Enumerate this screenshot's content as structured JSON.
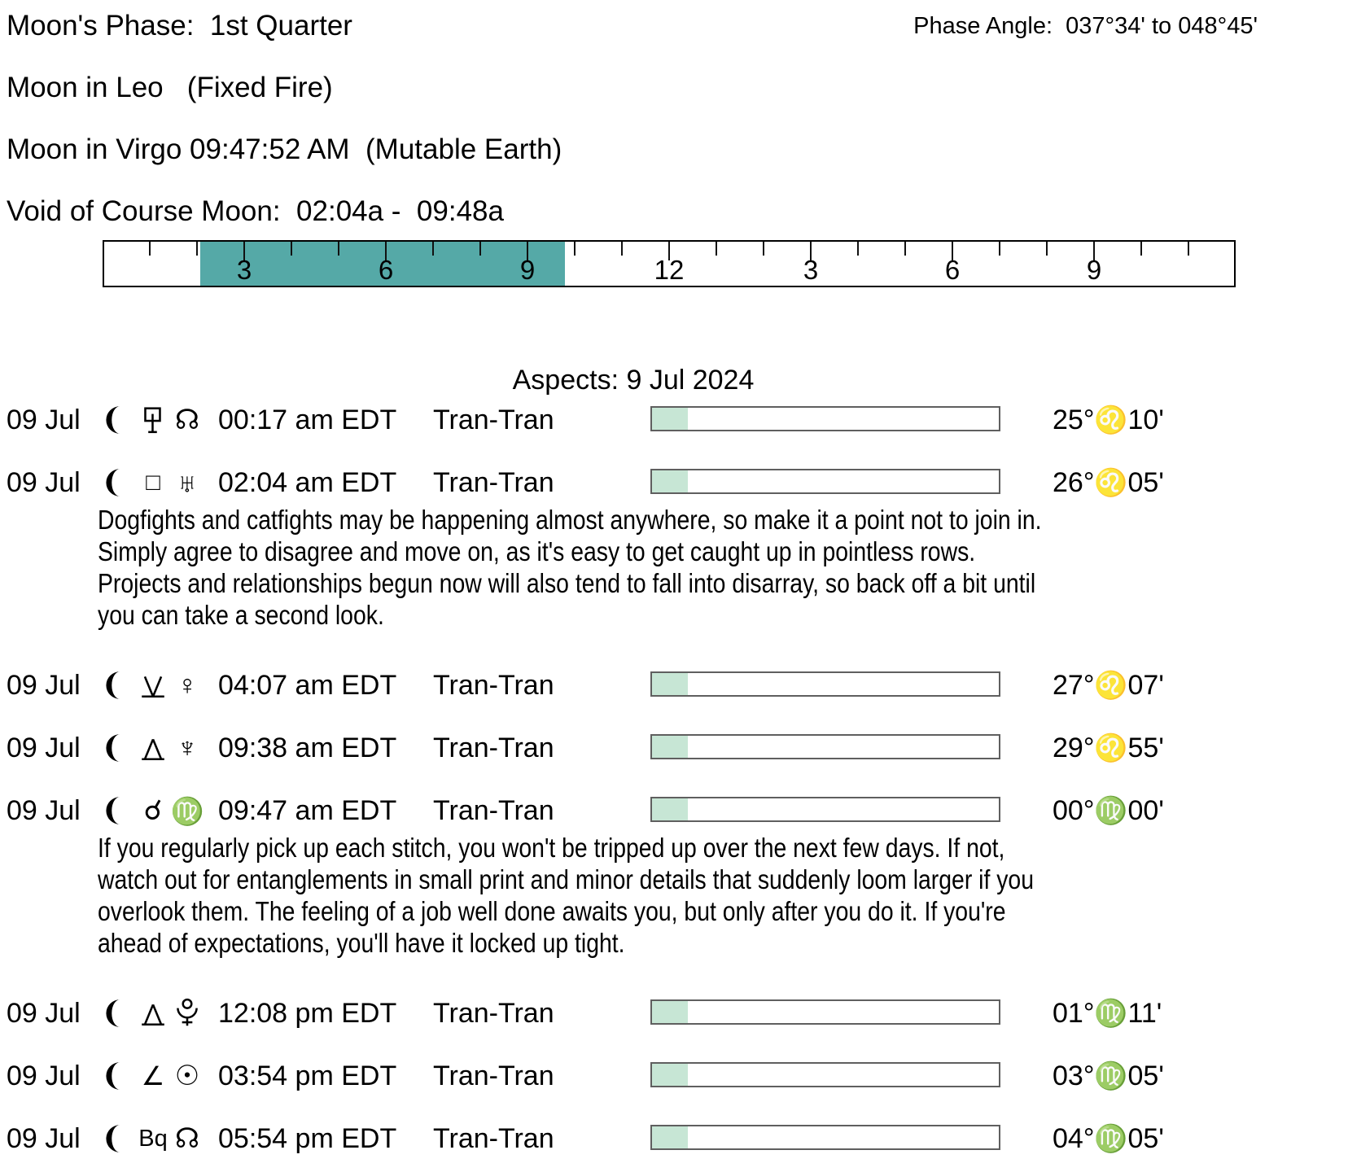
{
  "header": {
    "moon_phase": "Moon's Phase:  1st Quarter",
    "moon_in_leo": "Moon in Leo   (Fixed Fire)",
    "moon_in_virgo": "Moon in Virgo 09:47:52 AM  (Mutable Earth)",
    "void_of_course": "Void of Course Moon:  02:04a -  09:48a",
    "phase_angle": "Phase Angle:  037°34' to 048°45'"
  },
  "timeline": {
    "hours_total": 24,
    "void_start_hour": 2.0667,
    "void_end_hour": 9.8,
    "void_fill_color": "#55a9a7",
    "labels": [
      {
        "hour": 3,
        "text": "3"
      },
      {
        "hour": 6,
        "text": "6"
      },
      {
        "hour": 9,
        "text": "9"
      },
      {
        "hour": 12,
        "text": "12"
      },
      {
        "hour": 15,
        "text": "3"
      },
      {
        "hour": 18,
        "text": "6"
      },
      {
        "hour": 21,
        "text": "9"
      }
    ]
  },
  "aspects": {
    "title": "Aspects: 9 Jul 2024",
    "orb_bar_fill_color": "#c7e6d5",
    "rows": [
      {
        "date": "09 Jul",
        "body": "moon",
        "aspect": "sesquiquadrate",
        "target": "north-node",
        "time": "00:17 am EDT",
        "mode": "Tran-Tran",
        "bar_fill_pct": 10.3,
        "position": {
          "deg_text": "25°",
          "sign": "leo",
          "min_text": "10'"
        }
      },
      {
        "date": "09 Jul",
        "body": "moon",
        "aspect": "square",
        "target": "uranus",
        "time": "02:04 am EDT",
        "mode": "Tran-Tran",
        "bar_fill_pct": 10.3,
        "position": {
          "deg_text": "26°",
          "sign": "leo",
          "min_text": "05'"
        },
        "description": "Dogfights and catfights may be happening almost anywhere, so make it a point not to join in.\nSimply agree to disagree and move on, as it's easy to get caught up in pointless rows.\nProjects and relationships begun now will also tend to fall into disarray, so back off a bit until\nyou can take a second look."
      },
      {
        "date": "09 Jul",
        "body": "moon",
        "aspect": "semisextile",
        "target": "venus",
        "time": "04:07 am EDT",
        "mode": "Tran-Tran",
        "bar_fill_pct": 10.3,
        "position": {
          "deg_text": "27°",
          "sign": "leo",
          "min_text": "07'"
        }
      },
      {
        "date": "09 Jul",
        "body": "moon",
        "aspect": "quincunx",
        "target": "neptune",
        "time": "09:38 am EDT",
        "mode": "Tran-Tran",
        "bar_fill_pct": 10.3,
        "position": {
          "deg_text": "29°",
          "sign": "leo",
          "min_text": "55'"
        }
      },
      {
        "date": "09 Jul",
        "body": "moon",
        "aspect": "conjunction",
        "target": "virgo",
        "time": "09:47 am EDT",
        "mode": "Tran-Tran",
        "bar_fill_pct": 10.3,
        "position": {
          "deg_text": "00°",
          "sign": "virgo",
          "min_text": "00'"
        },
        "description": "If you regularly pick up each stitch, you won't be tripped up over the next few days. If not,\nwatch out for entanglements in small print and minor details that suddenly loom larger if you\noverlook them. The feeling of a job well done awaits you, but only after you do it. If you're\nahead of expectations, you'll have it locked up tight."
      },
      {
        "date": "09 Jul",
        "body": "moon",
        "aspect": "quincunx",
        "target": "pluto",
        "time": "12:08 pm EDT",
        "mode": "Tran-Tran",
        "bar_fill_pct": 10.3,
        "position": {
          "deg_text": "01°",
          "sign": "virgo",
          "min_text": "11'"
        }
      },
      {
        "date": "09 Jul",
        "body": "moon",
        "aspect": "semisquare",
        "target": "sun",
        "time": "03:54 pm EDT",
        "mode": "Tran-Tran",
        "bar_fill_pct": 10.3,
        "position": {
          "deg_text": "03°",
          "sign": "virgo",
          "min_text": "05'"
        }
      },
      {
        "date": "09 Jul",
        "body": "moon",
        "aspect": "biquintile",
        "target": "north-node",
        "time": "05:54 pm EDT",
        "mode": "Tran-Tran",
        "bar_fill_pct": 10.3,
        "position": {
          "deg_text": "04°",
          "sign": "virgo",
          "min_text": "05'"
        }
      }
    ]
  },
  "glyphs": {
    "square": "□",
    "conjunction": "☌",
    "semisquare": "∠",
    "biquintile": "Bq",
    "north-node": "☊",
    "uranus": "♅",
    "venus": "♀",
    "neptune": "♆",
    "sun": "☉",
    "virgo": "♍",
    "leo": "♌"
  }
}
